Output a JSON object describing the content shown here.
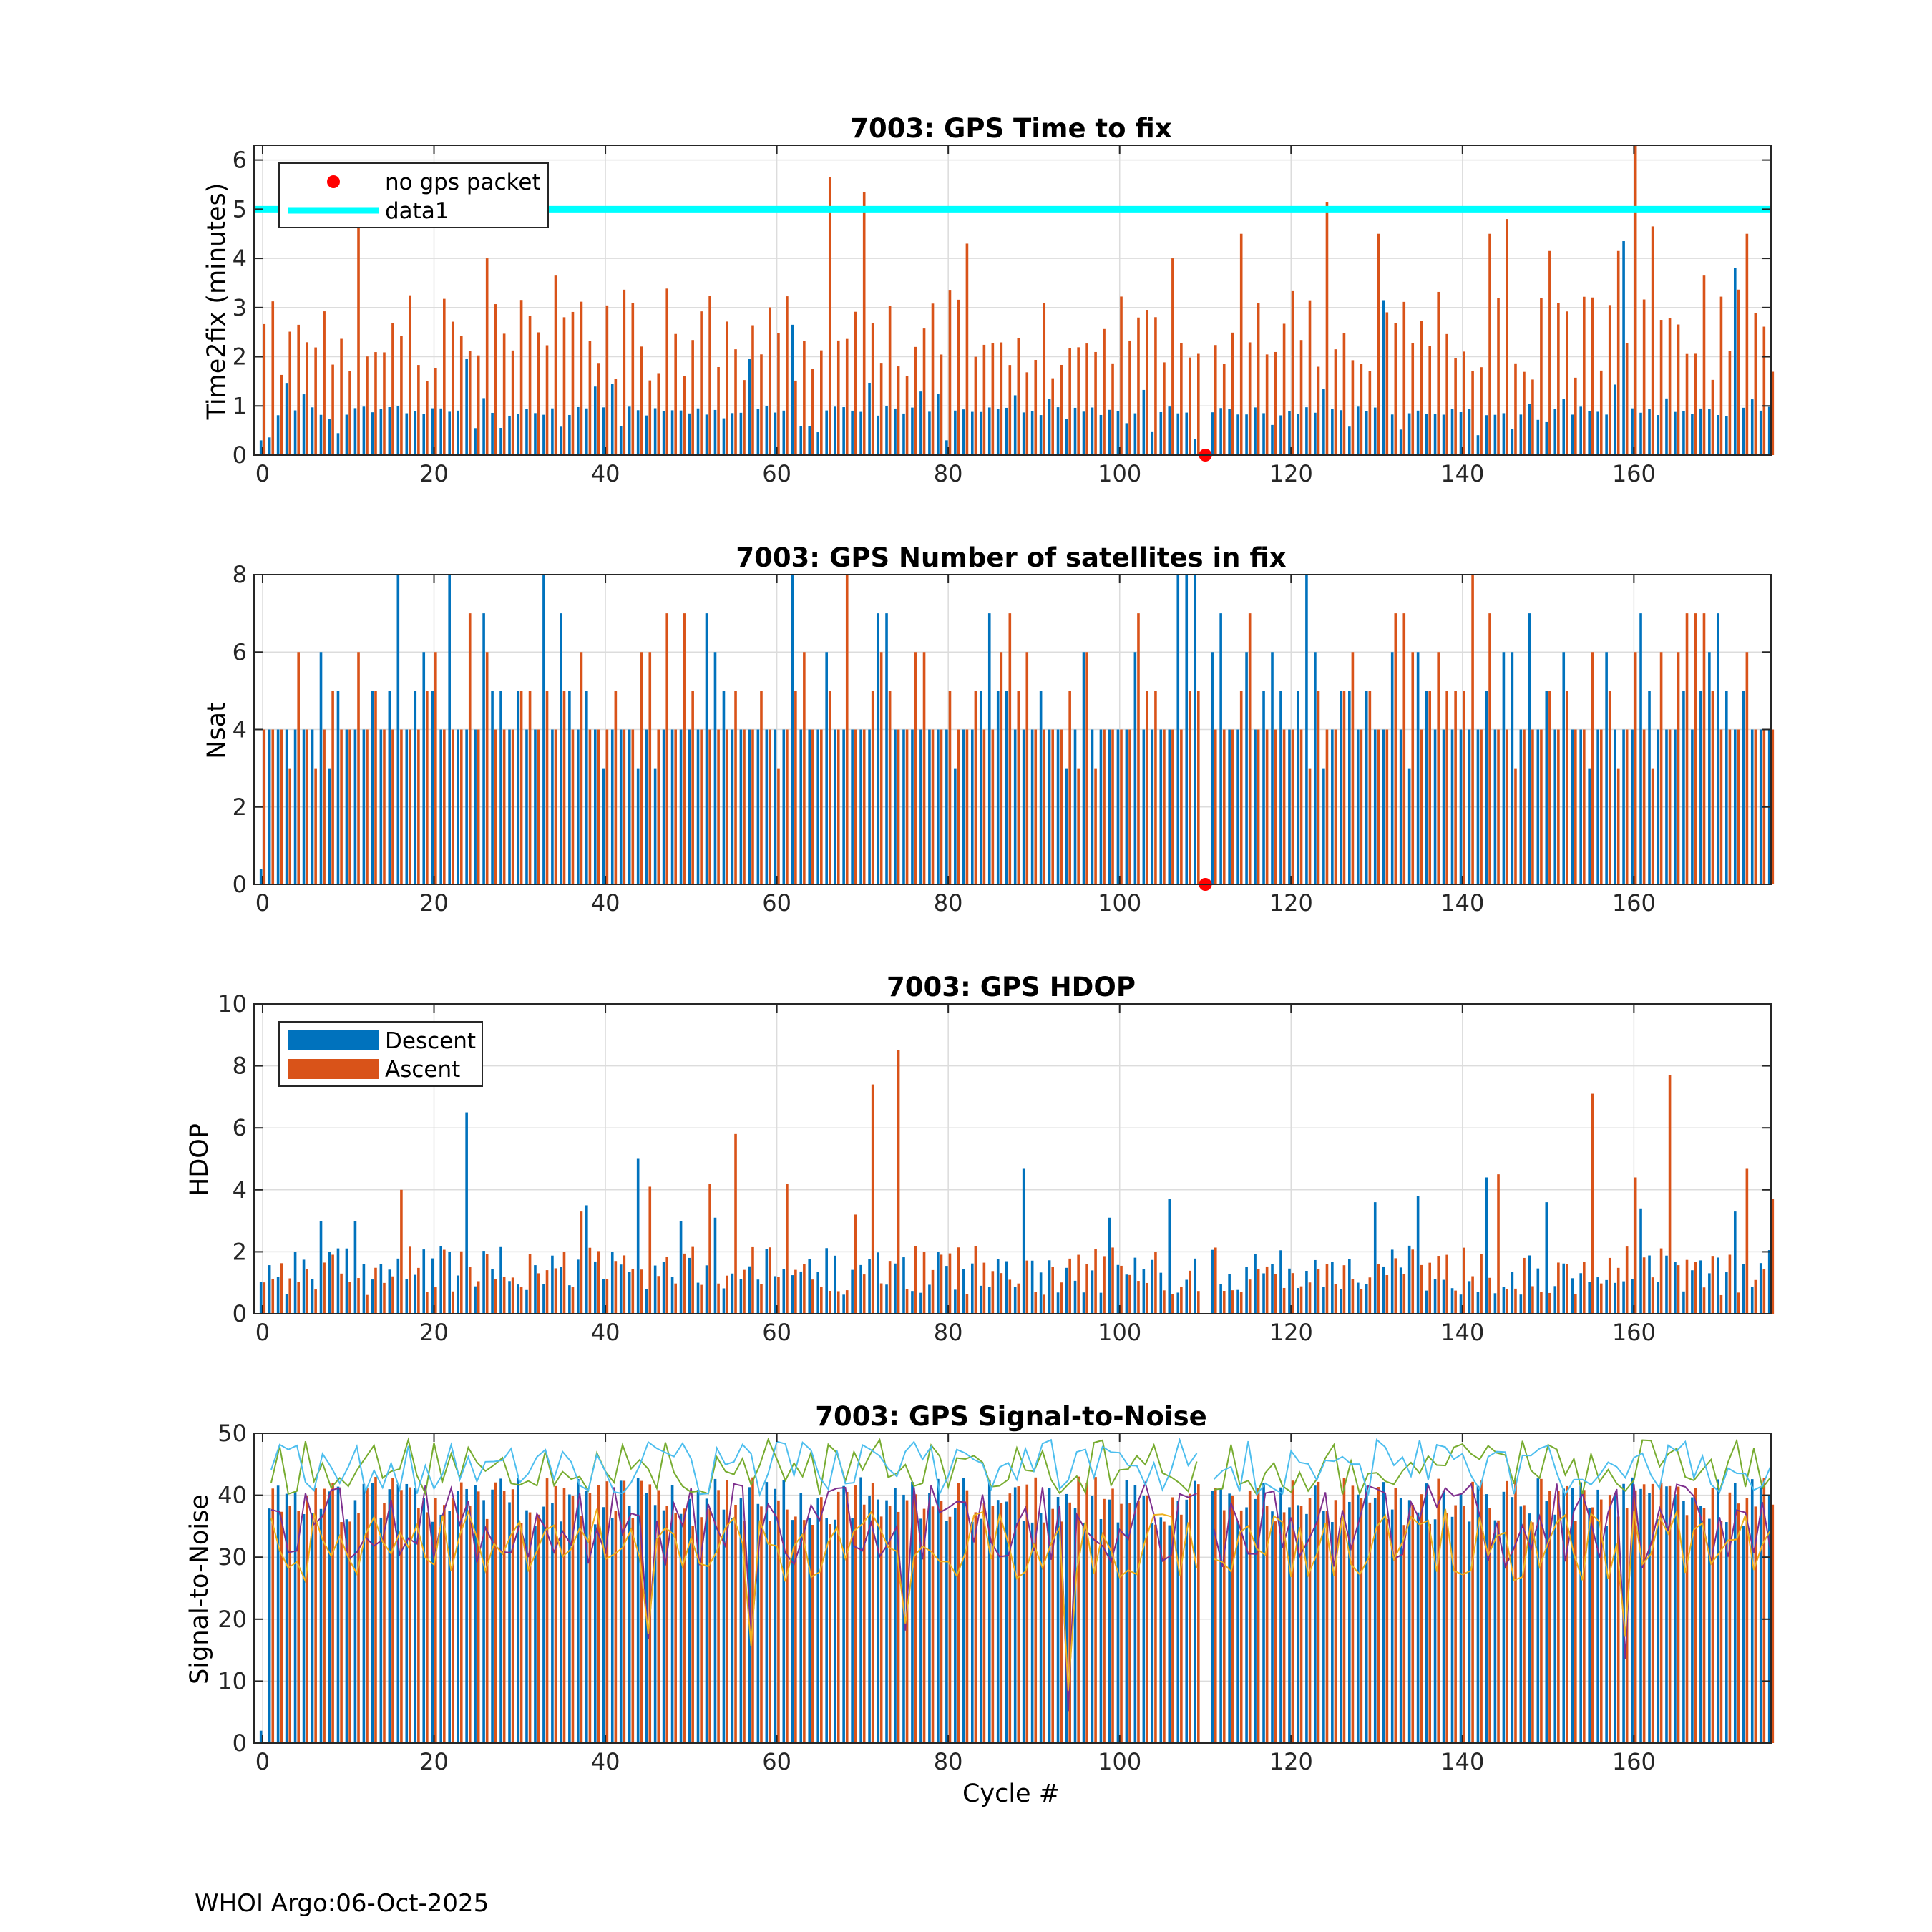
{
  "footer": "WHOI Argo:06-Oct-2025",
  "colors": {
    "descent": "#0072BD",
    "ascent": "#D95319",
    "threshold": "#00FFFF",
    "nopacket": "#FF0000",
    "grid": "#DCDCDC",
    "snr_lines": [
      "#7E2F8E",
      "#EDB120",
      "#77AC30",
      "#4DBEEE"
    ]
  },
  "chart_data": [
    {
      "id": "ttf",
      "type": "bar",
      "title": "7003: GPS Time to fix",
      "xlabel": "",
      "ylabel": "Time2fix (minutes)",
      "xlim": [
        -1,
        176
      ],
      "ylim": [
        0,
        6.3
      ],
      "xticks": [
        0,
        20,
        40,
        60,
        80,
        100,
        120,
        140,
        160
      ],
      "yticks": [
        0,
        1,
        2,
        3,
        4,
        5,
        6
      ],
      "grid": true,
      "legend": {
        "position": "top-left",
        "entries": [
          "no gps packet",
          "data1"
        ]
      },
      "threshold_line": 5,
      "no_packet_marker": {
        "x": 110,
        "y": 0
      },
      "peaks": {
        "descent": [
          [
            0,
            0.3
          ],
          [
            62,
            2.65
          ],
          [
            131,
            3.15
          ],
          [
            159,
            4.35
          ],
          [
            172,
            3.8
          ],
          [
            24,
            1.95
          ],
          [
            57,
            1.95
          ]
        ],
        "ascent": [
          [
            11,
            4.8
          ],
          [
            26,
            4.0
          ],
          [
            34,
            3.65
          ],
          [
            66,
            5.65
          ],
          [
            70,
            5.35
          ],
          [
            82,
            4.3
          ],
          [
            106,
            4.0
          ],
          [
            114,
            4.5
          ],
          [
            124,
            5.15
          ],
          [
            130,
            4.5
          ],
          [
            143,
            4.5
          ],
          [
            145,
            4.8
          ],
          [
            150,
            4.15
          ],
          [
            158,
            4.15
          ],
          [
            160,
            6.3
          ],
          [
            162,
            4.65
          ],
          [
            168,
            3.65
          ],
          [
            173,
            4.5
          ]
        ]
      },
      "baseline": {
        "descent": [
          0.2,
          1.0
        ],
        "ascent": [
          1.5,
          3.4
        ]
      }
    },
    {
      "id": "nsat",
      "type": "bar",
      "title": "7003: GPS Number of satellites in fix",
      "xlabel": "",
      "ylabel": "Nsat",
      "xlim": [
        -1,
        176
      ],
      "ylim": [
        0,
        8
      ],
      "xticks": [
        0,
        20,
        40,
        60,
        80,
        100,
        120,
        140,
        160
      ],
      "yticks": [
        0,
        2,
        4,
        6,
        8
      ],
      "grid": true,
      "no_packet_marker": {
        "x": 110,
        "y": 0
      },
      "peaks": {
        "descent": [
          [
            16,
            8
          ],
          [
            22,
            8
          ],
          [
            33,
            8
          ],
          [
            62,
            8
          ],
          [
            107,
            8
          ],
          [
            108,
            8
          ],
          [
            109,
            8
          ],
          [
            122,
            8
          ],
          [
            0,
            0.4
          ]
        ],
        "ascent": [
          [
            68,
            8
          ],
          [
            141,
            8
          ]
        ]
      },
      "levels": [
        3,
        4,
        5,
        6,
        7
      ]
    },
    {
      "id": "hdop",
      "type": "bar",
      "title": "7003: GPS HDOP",
      "xlabel": "",
      "ylabel": "HDOP",
      "xlim": [
        -1,
        176
      ],
      "ylim": [
        0,
        10
      ],
      "xticks": [
        0,
        20,
        40,
        60,
        80,
        100,
        120,
        140,
        160
      ],
      "yticks": [
        0,
        2,
        4,
        6,
        8,
        10
      ],
      "grid": true,
      "legend": {
        "position": "top-left",
        "entries": [
          "Descent",
          "Ascent"
        ]
      },
      "peaks": {
        "descent": [
          [
            24,
            6.5
          ],
          [
            44,
            5.0
          ],
          [
            89,
            4.7
          ],
          [
            106,
            3.7
          ],
          [
            143,
            4.4
          ],
          [
            150,
            3.6
          ],
          [
            161,
            3.4
          ],
          [
            135,
            3.8
          ],
          [
            130,
            3.6
          ],
          [
            7,
            3.0
          ],
          [
            11,
            3.0
          ],
          [
            38,
            3.5
          ],
          [
            49,
            3.0
          ],
          [
            53,
            3.1
          ],
          [
            99,
            3.1
          ],
          [
            172,
            3.3
          ]
        ],
        "ascent": [
          [
            16,
            4.0
          ],
          [
            45,
            4.1
          ],
          [
            55,
            5.8
          ],
          [
            61,
            4.2
          ],
          [
            71,
            7.4
          ],
          [
            74,
            8.5
          ],
          [
            155,
            7.1
          ],
          [
            164,
            7.7
          ],
          [
            173,
            4.7
          ],
          [
            176,
            3.7
          ],
          [
            160,
            4.4
          ],
          [
            144,
            4.5
          ],
          [
            52,
            4.2
          ],
          [
            37,
            3.3
          ],
          [
            69,
            3.2
          ]
        ]
      },
      "baseline": [
        0.6,
        2.2
      ]
    },
    {
      "id": "snr",
      "type": "bar",
      "title": "7003: GPS Signal-to-Noise",
      "xlabel": "Cycle #",
      "ylabel": "Signal-to-Noise",
      "xlim": [
        -1,
        176
      ],
      "ylim": [
        0,
        50
      ],
      "xticks": [
        0,
        20,
        40,
        60,
        80,
        100,
        120,
        140,
        160
      ],
      "yticks": [
        0,
        10,
        20,
        30,
        40,
        50
      ],
      "grid": true,
      "gap_cycles": [
        110
      ],
      "bar_range": [
        35,
        43
      ],
      "line_ranges": [
        [
          28,
          42
        ],
        [
          26,
          38
        ],
        [
          40,
          49
        ],
        [
          40,
          49
        ]
      ],
      "dips": [
        [
          57,
          13
        ],
        [
          94,
          5
        ],
        [
          159,
          12
        ],
        [
          45,
          16
        ],
        [
          75,
          18
        ]
      ]
    }
  ]
}
